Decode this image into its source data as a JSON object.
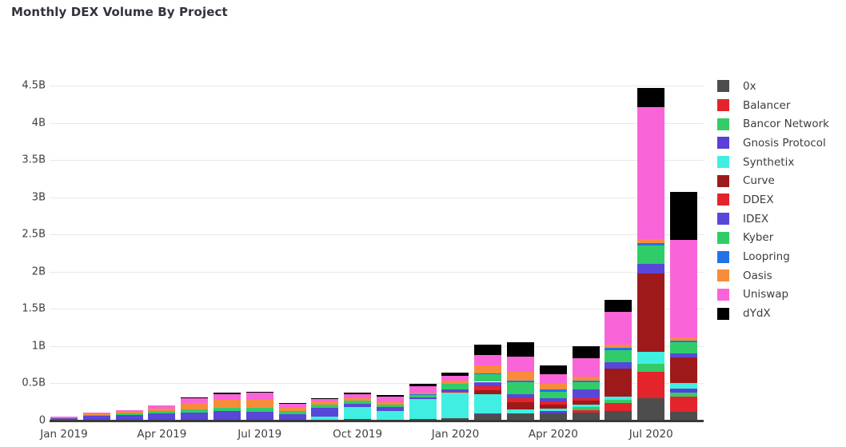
{
  "title": "Monthly DEX Volume By Project",
  "chart_data": {
    "type": "bar",
    "stacked": true,
    "unit": "billions USD",
    "grid": "horizontal",
    "legend_position": "right",
    "ylim": [
      0,
      4.5
    ],
    "y_tick_values": [
      0,
      0.5,
      1,
      1.5,
      2,
      2.5,
      3,
      3.5,
      4,
      4.5
    ],
    "y_tick_labels": [
      "0",
      "0.5B",
      "1B",
      "1.5B",
      "2B",
      "2.5B",
      "3B",
      "3.5B",
      "4B",
      "4.5B"
    ],
    "x": [
      "Jan 2019",
      "Feb 2019",
      "Mar 2019",
      "Apr 2019",
      "May 2019",
      "Jun 2019",
      "Jul 2019",
      "Aug 2019",
      "Sep 2019",
      "Oct 2019",
      "Nov 2019",
      "Dec 2019",
      "Jan 2020",
      "Feb 2020",
      "Mar 2020",
      "Apr 2020",
      "May 2020",
      "Jun 2020",
      "Jul 2020",
      "Aug 2020"
    ],
    "x_tick_indices": [
      0,
      3,
      6,
      9,
      12,
      15,
      18
    ],
    "x_tick_labels": [
      "Jan 2019",
      "Apr 2019",
      "Jul 2019",
      "Oct 2019",
      "Jan 2020",
      "Apr 2020",
      "Jul 2020"
    ],
    "series": [
      {
        "name": "0x",
        "color": "#4d4d4d",
        "values": [
          0,
          0,
          0,
          0,
          0,
          0,
          0,
          0,
          0,
          0.01,
          0,
          0.01,
          0.02,
          0.075,
          0.09,
          0.085,
          0.095,
          0.12,
          0.29,
          0.11
        ]
      },
      {
        "name": "Balancer",
        "color": "#e3242b",
        "values": [
          0,
          0,
          0,
          0,
          0,
          0,
          0,
          0,
          0,
          0,
          0,
          0,
          0,
          0,
          0,
          0,
          0.035,
          0.11,
          0.35,
          0.2
        ]
      },
      {
        "name": "Bancor Network",
        "color": "#33cc66",
        "values": [
          0,
          0,
          0,
          0,
          0,
          0,
          0,
          0,
          0,
          0,
          0,
          0,
          0,
          0,
          0,
          0,
          0.04,
          0.04,
          0.11,
          0.06
        ]
      },
      {
        "name": "Gnosis Protocol",
        "color": "#5a3fd8",
        "values": [
          0,
          0,
          0,
          0,
          0,
          0,
          0,
          0,
          0,
          0,
          0,
          0,
          0,
          0.01,
          0,
          0.03,
          0,
          0,
          0,
          0.05
        ]
      },
      {
        "name": "Synthetix",
        "color": "#40efe1",
        "values": [
          0,
          0,
          0,
          0,
          0,
          0,
          0,
          0,
          0.04,
          0.16,
          0.12,
          0.27,
          0.34,
          0.26,
          0.045,
          0.035,
          0.035,
          0.045,
          0.16,
          0.07
        ]
      },
      {
        "name": "Curve",
        "color": "#9e1a1a",
        "values": [
          0,
          0,
          0,
          0,
          0,
          0,
          0,
          0,
          0,
          0,
          0,
          0,
          0,
          0.055,
          0.1,
          0.055,
          0.05,
          0.37,
          1.06,
          0.35
        ]
      },
      {
        "name": "DDEX",
        "color": "#e3242b",
        "values": [
          0,
          0,
          0,
          0,
          0,
          0,
          0,
          0,
          0,
          0,
          0,
          0,
          0.015,
          0.055,
          0.06,
          0.045,
          0.035,
          0,
          0,
          0
        ]
      },
      {
        "name": "IDEX",
        "color": "#5847d9",
        "values": [
          0.03,
          0.055,
          0.065,
          0.09,
          0.1,
          0.115,
          0.11,
          0.08,
          0.12,
          0.05,
          0.05,
          0.02,
          0.03,
          0.055,
          0.045,
          0.045,
          0.12,
          0.09,
          0.12,
          0.05
        ]
      },
      {
        "name": "Kyber",
        "color": "#31cc6a",
        "values": [
          0,
          0.01,
          0.02,
          0.025,
          0.04,
          0.05,
          0.055,
          0.035,
          0.045,
          0.035,
          0.035,
          0.035,
          0.075,
          0.1,
          0.16,
          0.085,
          0.09,
          0.16,
          0.25,
          0.15
        ]
      },
      {
        "name": "Loopring",
        "color": "#2472e8",
        "values": [
          0,
          0,
          0,
          0,
          0,
          0,
          0,
          0,
          0,
          0,
          0,
          0.01,
          0,
          0.015,
          0.03,
          0.03,
          0.03,
          0.03,
          0.03,
          0.02
        ]
      },
      {
        "name": "Oasis",
        "color": "#f78c3c",
        "values": [
          0.005,
          0.02,
          0.02,
          0.03,
          0.085,
          0.1,
          0.105,
          0.05,
          0.04,
          0.035,
          0.035,
          0.025,
          0.05,
          0.11,
          0.115,
          0.075,
          0.05,
          0.04,
          0.06,
          0.05
        ]
      },
      {
        "name": "Uniswap",
        "color": "#f964d9",
        "values": [
          0.005,
          0.015,
          0.025,
          0.045,
          0.065,
          0.08,
          0.09,
          0.05,
          0.035,
          0.055,
          0.07,
          0.085,
          0.065,
          0.13,
          0.2,
          0.13,
          0.25,
          0.45,
          1.77,
          1.31
        ]
      },
      {
        "name": "dYdX",
        "color": "#000000",
        "values": [
          0,
          0,
          0,
          0,
          0.015,
          0.02,
          0.02,
          0.01,
          0.015,
          0.02,
          0.02,
          0.025,
          0.04,
          0.14,
          0.2,
          0.11,
          0.155,
          0.16,
          0.26,
          0.64
        ]
      }
    ]
  }
}
